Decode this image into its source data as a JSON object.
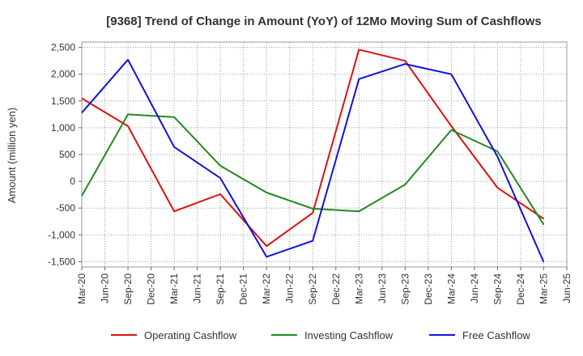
{
  "chart_data": {
    "type": "line",
    "title": "[9368]  Trend of Change in Amount (YoY) of 12Mo Moving Sum of Cashflows",
    "xlabel": "",
    "ylabel": "Amount (million yen)",
    "ylim": [
      -1600,
      2600
    ],
    "yticks": [
      2500,
      2000,
      1500,
      1000,
      500,
      0,
      -500,
      -1000,
      -1500
    ],
    "ytick_labels": [
      "2,500",
      "2,000",
      "1,500",
      "1,000",
      "500",
      "0",
      "-500",
      "-1,000",
      "-1,500"
    ],
    "categories": [
      "Mar-20",
      "Jun-20",
      "Sep-20",
      "Dec-20",
      "Mar-21",
      "Jun-21",
      "Sep-21",
      "Dec-21",
      "Mar-22",
      "Jun-22",
      "Sep-22",
      "Dec-22",
      "Mar-23",
      "Jun-23",
      "Sep-23",
      "Dec-23",
      "Mar-24",
      "Jun-24",
      "Sep-24",
      "Dec-24",
      "Mar-25",
      "Jun-25"
    ],
    "legend_position": "bottom",
    "grid": true,
    "series": [
      {
        "name": "Operating Cashflow",
        "color": "#dd1111",
        "points": [
          [
            0,
            1550
          ],
          [
            2,
            1030
          ],
          [
            4,
            -560
          ],
          [
            6,
            -240
          ],
          [
            8,
            -1210
          ],
          [
            10,
            -590
          ],
          [
            12,
            2460
          ],
          [
            14,
            2250
          ],
          [
            16,
            1030
          ],
          [
            18,
            -120
          ],
          [
            20,
            -700
          ]
        ]
      },
      {
        "name": "Investing Cashflow",
        "color": "#228822",
        "points": [
          [
            0,
            -270
          ],
          [
            2,
            1250
          ],
          [
            4,
            1200
          ],
          [
            6,
            290
          ],
          [
            8,
            -210
          ],
          [
            10,
            -510
          ],
          [
            12,
            -560
          ],
          [
            14,
            -60
          ],
          [
            16,
            960
          ],
          [
            18,
            560
          ],
          [
            20,
            -810
          ]
        ]
      },
      {
        "name": "Free Cashflow",
        "color": "#1111dd",
        "points": [
          [
            0,
            1280
          ],
          [
            2,
            2270
          ],
          [
            4,
            640
          ],
          [
            6,
            60
          ],
          [
            8,
            -1410
          ],
          [
            10,
            -1110
          ],
          [
            12,
            1910
          ],
          [
            14,
            2190
          ],
          [
            16,
            2000
          ],
          [
            18,
            460
          ],
          [
            20,
            -1510
          ]
        ]
      }
    ]
  }
}
